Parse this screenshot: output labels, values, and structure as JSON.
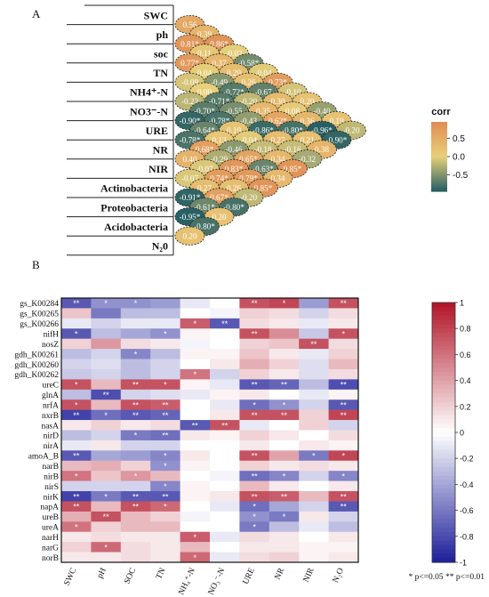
{
  "panel_a_label": "A",
  "panel_b_label": "B",
  "chart_data": [
    {
      "type": "heatmap",
      "subtype": "lower-triangle-correlation",
      "legend_title": "corr",
      "legend_ticks": [
        "0.5",
        "0.0",
        "-0.5"
      ],
      "colors": {
        "high": "#e08a53",
        "mid": "#e8d07a",
        "low": "#1f5a63"
      },
      "variables": [
        "SWC",
        "ph",
        "soc",
        "TN",
        "NH4⁺-N",
        "NO3⁻-N",
        "URE",
        "NR",
        "NIR",
        "Actinobacteria",
        "Proteobacteria",
        "Acidobacteria",
        "N₂0"
      ],
      "pairs": [
        {
          "a": "SWC",
          "b": "ph",
          "label": "0.56",
          "r": 0.56
        },
        {
          "a": "SWC",
          "b": "soc",
          "label": "0.39",
          "r": 0.39
        },
        {
          "a": "ph",
          "b": "soc",
          "label": "0.81*",
          "r": 0.81
        },
        {
          "a": "SWC",
          "b": "TN",
          "label": "0.86*",
          "r": 0.86
        },
        {
          "a": "ph",
          "b": "TN",
          "label": "0.11",
          "r": 0.11
        },
        {
          "a": "soc",
          "b": "TN",
          "label": "0.77*",
          "r": 0.77
        },
        {
          "a": "SWC",
          "b": "NH4⁺-N",
          "label": "-0.02",
          "r": -0.02
        },
        {
          "a": "ph",
          "b": "NH4⁺-N",
          "label": "0.37",
          "r": 0.37
        },
        {
          "a": "soc",
          "b": "NH4⁺-N",
          "label": "0.04",
          "r": 0.04
        },
        {
          "a": "TN",
          "b": "NH4⁺-N",
          "label": "-0.09",
          "r": -0.09
        },
        {
          "a": "SWC",
          "b": "NO3⁻-N",
          "label": "-0.58*",
          "r": -0.58
        },
        {
          "a": "ph",
          "b": "NO3⁻-N",
          "label": "0.29",
          "r": 0.29
        },
        {
          "a": "soc",
          "b": "NO3⁻-N",
          "label": "-0.49",
          "r": -0.49
        },
        {
          "a": "TN",
          "b": "NO3⁻-N",
          "label": "0.00",
          "r": 0.0
        },
        {
          "a": "NH4⁺-N",
          "b": "NO3⁻-N",
          "label": "-0.22",
          "r": -0.22
        },
        {
          "a": "SWC",
          "b": "URE",
          "label": "-0.04",
          "r": -0.04
        },
        {
          "a": "ph",
          "b": "URE",
          "label": "0.26",
          "r": 0.26
        },
        {
          "a": "soc",
          "b": "URE",
          "label": "-0.72*",
          "r": -0.72
        },
        {
          "a": "TN",
          "b": "URE",
          "label": "-0.71*",
          "r": -0.71
        },
        {
          "a": "NH4⁺-N",
          "b": "URE",
          "label": "-0.70*",
          "r": -0.7
        },
        {
          "a": "NO3⁻-N",
          "b": "URE",
          "label": "-0.90*",
          "r": -0.9
        },
        {
          "a": "SWC",
          "b": "NR",
          "label": "0.73*",
          "r": 0.73
        },
        {
          "a": "ph",
          "b": "NR",
          "label": "-0.67",
          "r": -0.67
        },
        {
          "a": "soc",
          "b": "NR",
          "label": "-0.20",
          "r": -0.2
        },
        {
          "a": "TN",
          "b": "NR",
          "label": "-0.55",
          "r": -0.55
        },
        {
          "a": "NH4⁺-N",
          "b": "NR",
          "label": "-0.78*",
          "r": -0.78
        },
        {
          "a": "NO3⁻-N",
          "b": "NR",
          "label": "-0.64*",
          "r": -0.64
        },
        {
          "a": "URE",
          "b": "NR",
          "label": "-0.78*",
          "r": -0.78
        },
        {
          "a": "SWC",
          "b": "NIR",
          "label": "-0.10",
          "r": -0.1
        },
        {
          "a": "ph",
          "b": "NIR",
          "label": "0.30",
          "r": 0.3
        },
        {
          "a": "soc",
          "b": "NIR",
          "label": "0.35",
          "r": 0.35
        },
        {
          "a": "TN",
          "b": "NIR",
          "label": "-0.43",
          "r": -0.43
        },
        {
          "a": "NH4⁺-N",
          "b": "NIR",
          "label": "0.19",
          "r": 0.19
        },
        {
          "a": "NO3⁻-N",
          "b": "NIR",
          "label": "0.13",
          "r": 0.13
        },
        {
          "a": "URE",
          "b": "NIR",
          "label": "0.68*",
          "r": 0.68
        },
        {
          "a": "NR",
          "b": "NIR",
          "label": "0.40",
          "r": 0.4
        },
        {
          "a": "SWC",
          "b": "Actinobacteria",
          "label": "0.20",
          "r": 0.2
        },
        {
          "a": "ph",
          "b": "Actinobacteria",
          "label": "0.08",
          "r": 0.08
        },
        {
          "a": "soc",
          "b": "Actinobacteria",
          "label": "0.62*",
          "r": 0.62
        },
        {
          "a": "TN",
          "b": "Actinobacteria",
          "label": "-0.86*",
          "r": -0.86
        },
        {
          "a": "NH4⁺-N",
          "b": "Actinobacteria",
          "label": "-0.04",
          "r": -0.04
        },
        {
          "a": "NO3⁻-N",
          "b": "Actinobacteria",
          "label": "-0.46",
          "r": -0.46
        },
        {
          "a": "URE",
          "b": "Actinobacteria",
          "label": "-0.29",
          "r": -0.29
        },
        {
          "a": "NR",
          "b": "Actinobacteria",
          "label": "-0.07",
          "r": -0.07
        },
        {
          "a": "NIR",
          "b": "Actinobacteria",
          "label": "-0.07",
          "r": -0.07
        },
        {
          "a": "SWC",
          "b": "Proteobacteria",
          "label": "-0.40",
          "r": -0.4
        },
        {
          "a": "ph",
          "b": "Proteobacteria",
          "label": "0.36",
          "r": 0.36
        },
        {
          "a": "soc",
          "b": "Proteobacteria",
          "label": "-0.80*",
          "r": -0.8
        },
        {
          "a": "TN",
          "b": "Proteobacteria",
          "label": "0.27",
          "r": 0.27
        },
        {
          "a": "NH4⁺-N",
          "b": "Proteobacteria",
          "label": "-0.18",
          "r": -0.18
        },
        {
          "a": "NO3⁻-N",
          "b": "Proteobacteria",
          "label": "0.65*",
          "r": 0.65
        },
        {
          "a": "URE",
          "b": "Proteobacteria",
          "label": "0.83*",
          "r": 0.83
        },
        {
          "a": "NR",
          "b": "Proteobacteria",
          "label": "0.74*",
          "r": 0.74
        },
        {
          "a": "NIR",
          "b": "Proteobacteria",
          "label": "0.27",
          "r": 0.27
        },
        {
          "a": "Actinobacteria",
          "b": "Proteobacteria",
          "label": "-0.91*",
          "r": -0.91
        },
        {
          "a": "SWC",
          "b": "Acidobacteria",
          "label": "0.19",
          "r": 0.19
        },
        {
          "a": "ph",
          "b": "Acidobacteria",
          "label": "-0.96*",
          "r": -0.96
        },
        {
          "a": "soc",
          "b": "Acidobacteria",
          "label": "0.21",
          "r": 0.21
        },
        {
          "a": "TN",
          "b": "Acidobacteria",
          "label": "-0.16",
          "r": -0.16
        },
        {
          "a": "NH4⁺-N",
          "b": "Acidobacteria",
          "label": "0.34",
          "r": 0.34
        },
        {
          "a": "NO3⁻-N",
          "b": "Acidobacteria",
          "label": "-0.63*",
          "r": -0.63
        },
        {
          "a": "URE",
          "b": "Acidobacteria",
          "label": "0.79*",
          "r": 0.79
        },
        {
          "a": "NR",
          "b": "Acidobacteria",
          "label": "0.26",
          "r": 0.26
        },
        {
          "a": "NIR",
          "b": "Acidobacteria",
          "label": "0.67*",
          "r": 0.67
        },
        {
          "a": "Actinobacteria",
          "b": "Acidobacteria",
          "label": "-0.61*",
          "r": -0.61
        },
        {
          "a": "Proteobacteria",
          "b": "Acidobacteria",
          "label": "-0.95*",
          "r": -0.95
        },
        {
          "a": "SWC",
          "b": "N₂0",
          "label": "-0.20",
          "r": -0.2
        },
        {
          "a": "ph",
          "b": "N₂0",
          "label": "-0.90*",
          "r": -0.9
        },
        {
          "a": "soc",
          "b": "N₂0",
          "label": "0.38",
          "r": 0.38
        },
        {
          "a": "TN",
          "b": "N₂0",
          "label": "-0.32",
          "r": -0.32
        },
        {
          "a": "NH4⁺-N",
          "b": "N₂0",
          "label": "0.85*",
          "r": 0.85
        },
        {
          "a": "NO3⁻-N",
          "b": "N₂0",
          "label": "0.34",
          "r": 0.34
        },
        {
          "a": "URE",
          "b": "N₂0",
          "label": "0.85*",
          "r": 0.85
        },
        {
          "a": "NR",
          "b": "N₂0",
          "label": "-0.20",
          "r": -0.2
        },
        {
          "a": "NIR",
          "b": "N₂0",
          "label": "-0.80*",
          "r": -0.8
        },
        {
          "a": "Actinobacteria",
          "b": "N₂0",
          "label": "0.20",
          "r": 0.2
        },
        {
          "a": "Proteobacteria",
          "b": "N₂0",
          "label": "-0.80*",
          "r": -0.8
        },
        {
          "a": "Acidobacteria",
          "b": "N₂0",
          "label": "0.20",
          "r": 0.2
        }
      ]
    },
    {
      "type": "heatmap",
      "columns": [
        "SWC",
        "pH",
        "SOC",
        "TN",
        "NH₄⁺-N",
        "NO₃⁻-N",
        "URE",
        "NR",
        "NIR",
        "N₂O"
      ],
      "rows": [
        "gs_K00284",
        "gs_K00265",
        "gs_K00266",
        "nifH",
        "nosZ",
        "gdh_K00261",
        "gdh_K00260",
        "gdh_K00262",
        "ureC",
        "glnA",
        "nrfA",
        "nxrB",
        "nasA",
        "nirD",
        "nirA",
        "amoA_B",
        "narB",
        "nirB",
        "nirS",
        "nirK",
        "napA",
        "ureB",
        "ureA",
        "narH",
        "narG",
        "norB"
      ],
      "values": [
        [
          -0.75,
          -0.5,
          -0.5,
          -0.45,
          -0.1,
          0.0,
          0.75,
          0.8,
          -0.45,
          0.75
        ],
        [
          0.25,
          -0.6,
          -0.3,
          -0.3,
          0.0,
          -0.05,
          0.2,
          0.15,
          -0.2,
          0.15
        ],
        [
          -0.1,
          -0.2,
          -0.1,
          -0.1,
          0.7,
          -0.75,
          0.15,
          0.1,
          -0.1,
          0.1
        ],
        [
          -0.75,
          -0.3,
          -0.4,
          -0.5,
          0.05,
          0.0,
          0.75,
          0.5,
          -0.25,
          0.75
        ],
        [
          0.2,
          0.45,
          0.15,
          0.1,
          -0.05,
          0.0,
          0.2,
          0.25,
          0.75,
          0.15
        ],
        [
          -0.3,
          -0.2,
          -0.55,
          -0.3,
          0.05,
          0.05,
          0.25,
          0.1,
          -0.1,
          0.2
        ],
        [
          -0.2,
          -0.15,
          -0.3,
          -0.2,
          0.0,
          0.1,
          0.35,
          0.2,
          -0.15,
          0.3
        ],
        [
          -0.25,
          -0.2,
          -0.3,
          -0.2,
          0.6,
          -0.2,
          0.2,
          0.1,
          -0.15,
          0.15
        ],
        [
          0.75,
          0.3,
          0.75,
          0.75,
          0.05,
          -0.1,
          -0.75,
          -0.7,
          -0.3,
          -0.8
        ],
        [
          -0.3,
          -0.8,
          -0.2,
          -0.15,
          -0.1,
          0.05,
          0.1,
          0.0,
          -0.1,
          0.05
        ],
        [
          0.75,
          0.3,
          0.75,
          0.7,
          0.0,
          -0.1,
          -0.65,
          -0.5,
          -0.2,
          -0.75
        ],
        [
          -0.85,
          -0.65,
          -0.75,
          -0.7,
          0.0,
          0.1,
          0.75,
          0.75,
          0.2,
          0.8
        ],
        [
          0.1,
          0.2,
          0.1,
          0.15,
          -0.75,
          0.75,
          -0.1,
          0.0,
          0.2,
          -0.2
        ],
        [
          -0.3,
          -0.2,
          -0.6,
          -0.65,
          0.1,
          0.05,
          0.2,
          0.1,
          0.0,
          0.15
        ],
        [
          -0.1,
          0.1,
          -0.2,
          -0.2,
          0.0,
          0.0,
          0.1,
          0.0,
          0.1,
          0.05
        ],
        [
          -0.75,
          -0.4,
          -0.45,
          -0.55,
          0.1,
          0.0,
          0.75,
          0.4,
          -0.6,
          0.8
        ],
        [
          0.3,
          0.35,
          0.2,
          -0.5,
          0.05,
          0.0,
          0.2,
          0.1,
          0.15,
          0.1
        ],
        [
          0.6,
          0.25,
          0.45,
          0.3,
          0.0,
          -0.05,
          -0.65,
          -0.55,
          -0.2,
          -0.55
        ],
        [
          -0.2,
          -0.2,
          -0.2,
          -0.55,
          0.05,
          0.0,
          0.3,
          0.1,
          0.0,
          0.1
        ],
        [
          -0.85,
          -0.6,
          -0.75,
          -0.75,
          0.05,
          0.1,
          0.75,
          0.7,
          0.3,
          0.75
        ],
        [
          0.75,
          0.3,
          0.75,
          0.65,
          0.0,
          -0.1,
          -0.65,
          -0.4,
          -0.2,
          -0.75
        ],
        [
          0.35,
          0.75,
          0.3,
          0.2,
          -0.05,
          0.0,
          -0.5,
          -0.6,
          0.1,
          -0.2
        ],
        [
          0.6,
          0.2,
          0.3,
          0.3,
          0.0,
          0.0,
          -0.6,
          -0.3,
          -0.1,
          -0.3
        ],
        [
          0.1,
          0.15,
          0.1,
          0.1,
          0.7,
          -0.1,
          0.15,
          0.1,
          0.0,
          0.1
        ],
        [
          0.2,
          0.65,
          0.15,
          0.1,
          0.3,
          0.0,
          0.1,
          0.1,
          0.05,
          0.05
        ],
        [
          0.1,
          0.1,
          0.15,
          0.1,
          0.65,
          -0.1,
          0.15,
          0.2,
          0.05,
          0.1
        ]
      ],
      "significance": [
        [
          "**",
          "*",
          "*",
          "",
          "",
          "",
          "**",
          "*",
          "",
          "**"
        ],
        [
          "",
          "",
          "",
          "",
          "",
          "",
          "",
          "",
          "",
          ""
        ],
        [
          "",
          "",
          "",
          "",
          "*",
          "**",
          "",
          "",
          "",
          ""
        ],
        [
          "*",
          "",
          "",
          "*",
          "",
          "",
          "**",
          "",
          "",
          "*"
        ],
        [
          "",
          "",
          "",
          "",
          "",
          "",
          "",
          "",
          "**",
          ""
        ],
        [
          "",
          "",
          "*",
          "",
          "",
          "",
          "",
          "",
          "",
          ""
        ],
        [
          "",
          "",
          "",
          "",
          "",
          "",
          "",
          "",
          "",
          ""
        ],
        [
          "",
          "",
          "",
          "",
          "*",
          "",
          "",
          "",
          "",
          ""
        ],
        [
          "*",
          "",
          "**",
          "*",
          "",
          "",
          "**",
          "**",
          "",
          "**"
        ],
        [
          "",
          "**",
          "",
          "",
          "",
          "",
          "",
          "",
          "",
          ""
        ],
        [
          "*",
          "",
          "**",
          "**",
          "",
          "",
          "*",
          "*",
          "",
          "**"
        ],
        [
          "**",
          "*",
          "**",
          "**",
          "",
          "",
          "**",
          "**",
          "",
          "**"
        ],
        [
          "",
          "",
          "",
          "",
          "**",
          "**",
          "",
          "",
          "",
          ""
        ],
        [
          "",
          "",
          "*",
          "**",
          "",
          "",
          "",
          "",
          "",
          ""
        ],
        [
          "",
          "",
          "",
          "",
          "",
          "",
          "",
          "",
          "",
          ""
        ],
        [
          "**",
          "",
          "",
          "*",
          "",
          "",
          "**",
          "",
          "*",
          "*"
        ],
        [
          "",
          "",
          "",
          "*",
          "",
          "",
          "",
          "",
          "",
          ""
        ],
        [
          "*",
          "",
          "*",
          "",
          "",
          "",
          "**",
          "*",
          "",
          "*"
        ],
        [
          "",
          "",
          "",
          "*",
          "",
          "",
          "",
          "",
          "",
          ""
        ],
        [
          "**",
          "*",
          "**",
          "**",
          "",
          "",
          "**",
          "**",
          "",
          "**"
        ],
        [
          "**",
          "",
          "**",
          "*",
          "",
          "",
          "*",
          "",
          "",
          "**"
        ],
        [
          "",
          "**",
          "",
          "",
          "",
          "",
          "*",
          "*",
          "",
          ""
        ],
        [
          "*",
          "",
          "",
          "",
          "",
          "",
          "*",
          "",
          "",
          ""
        ],
        [
          "",
          "",
          "",
          "",
          "*",
          "",
          "",
          "",
          "",
          ""
        ],
        [
          "",
          "*",
          "",
          "",
          "",
          "",
          "",
          "",
          "",
          ""
        ],
        [
          "",
          "",
          "",
          "",
          "*",
          "",
          "",
          "",
          "",
          ""
        ]
      ],
      "colorbar_ticks": [
        "1",
        "0.8",
        "0.6",
        "0.4",
        "0.2",
        "0",
        "-0.2",
        "-0.4",
        "-0.6",
        "-0.8",
        "-1"
      ],
      "colorbar_range": [
        -1,
        1
      ],
      "colors": {
        "high": "#b2182b",
        "mid": "#ffffff",
        "low": "#21229b"
      },
      "footnote": "* p<=0.05  ** p<=0.01"
    }
  ]
}
